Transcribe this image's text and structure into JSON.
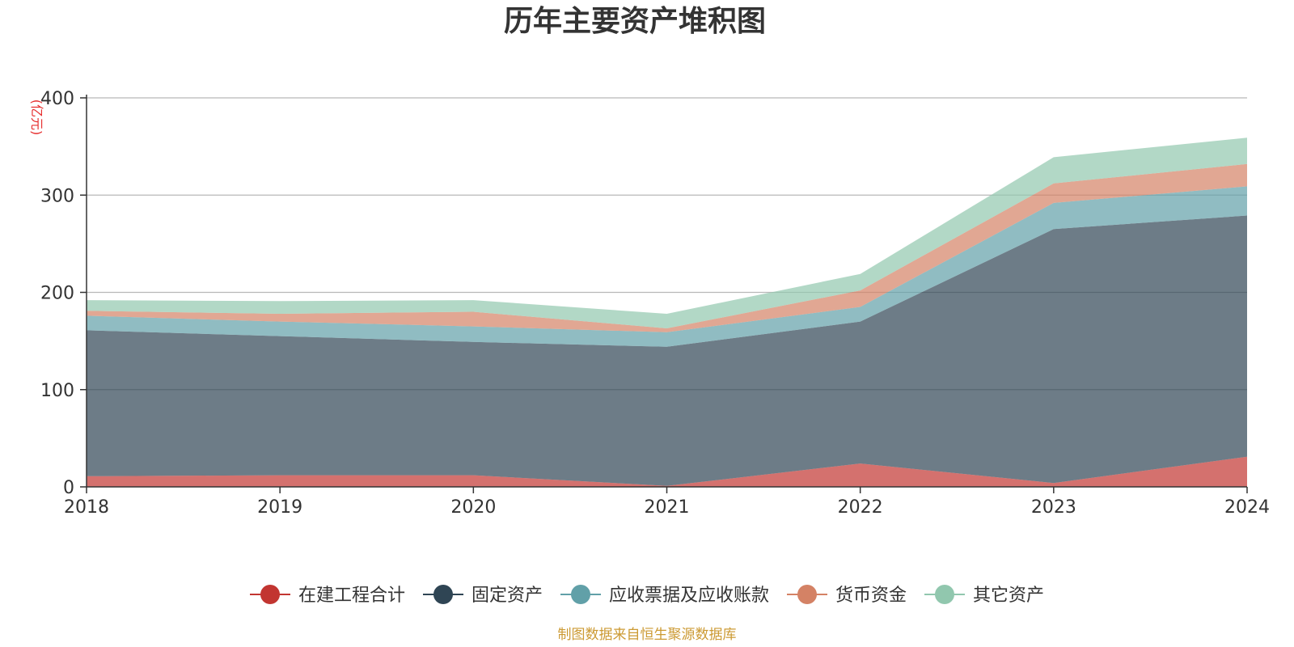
{
  "chart_data": {
    "type": "area",
    "stacked": true,
    "title": "历年主要资产堆积图",
    "ylabel": "(亿元)",
    "ylabel_color": "#e62e2e",
    "xlabel": "",
    "categories": [
      "2018",
      "2019",
      "2020",
      "2021",
      "2022",
      "2023",
      "2024"
    ],
    "ylim": [
      0,
      400
    ],
    "yticks": [
      "0",
      "100",
      "200",
      "300",
      "400"
    ],
    "ytick_values": [
      0,
      100,
      200,
      300,
      400
    ],
    "grid": true,
    "legend_position": "bottom-center",
    "series": [
      {
        "name": "在建工程合计",
        "color": "#c23531",
        "values": [
          11,
          12,
          12,
          1,
          24,
          4,
          31
        ]
      },
      {
        "name": "固定资产",
        "color": "#2f4554",
        "values": [
          150,
          143,
          137,
          143,
          146,
          261,
          248
        ]
      },
      {
        "name": "应收票据及应收账款",
        "color": "#61a0a8",
        "values": [
          15,
          15,
          16,
          15,
          15,
          27,
          30
        ]
      },
      {
        "name": "货币资金",
        "color": "#d48265",
        "values": [
          5,
          8,
          15,
          4,
          17,
          20,
          23
        ]
      },
      {
        "name": "其它资产",
        "color": "#91c7ae",
        "values": [
          11,
          13,
          12,
          15,
          17,
          27,
          27
        ]
      }
    ],
    "source_note": "制图数据来自恒生聚源数据库",
    "source_color": "#cc9a33"
  }
}
